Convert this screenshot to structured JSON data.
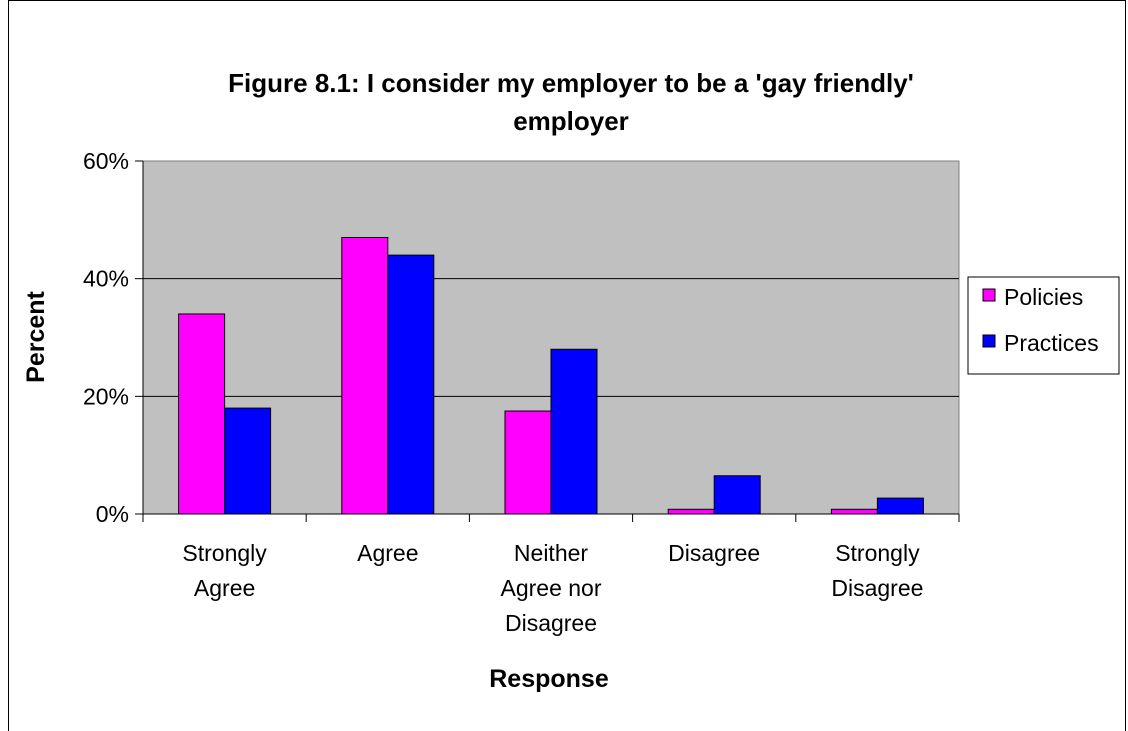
{
  "chart_data": {
    "type": "bar",
    "title_lines": [
      "Figure 8.1: I consider my employer to be a 'gay friendly'",
      "employer"
    ],
    "xlabel": "Response",
    "ylabel": "Percent",
    "categories": [
      [
        "Strongly",
        "Agree"
      ],
      [
        "Agree"
      ],
      [
        "Neither",
        "Agree nor",
        "Disagree"
      ],
      [
        "Disagree"
      ],
      [
        "Strongly",
        "Disagree"
      ]
    ],
    "series": [
      {
        "name": "Policies",
        "color": "#ff00ff",
        "values": [
          34,
          47,
          17.5,
          0.8,
          0.8
        ]
      },
      {
        "name": "Practices",
        "color": "#0000ff",
        "values": [
          18,
          44,
          28,
          6.5,
          2.7
        ]
      }
    ],
    "yticks": [
      "0%",
      "20%",
      "40%",
      "60%"
    ],
    "ylim": [
      0,
      60
    ],
    "grid": true,
    "plot_background": "#c0c0c0",
    "legend_position": "right"
  }
}
